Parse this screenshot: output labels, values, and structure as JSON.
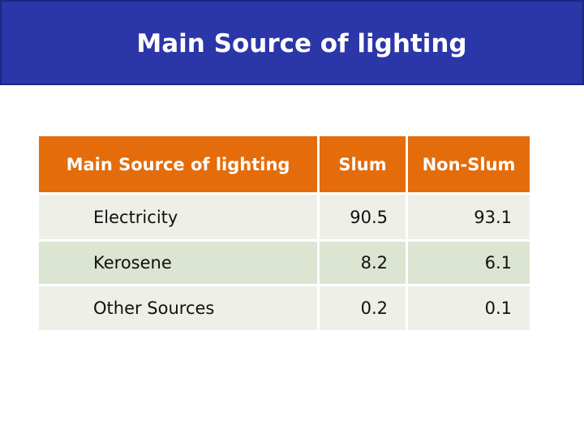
{
  "header": {
    "title": "Main Source of lighting"
  },
  "table": {
    "columns": [
      "Main Source of lighting",
      "Slum",
      "Non-Slum"
    ],
    "rows": [
      [
        "Electricity",
        90.5,
        93.1
      ],
      [
        "Kerosene",
        8.2,
        6.1
      ],
      [
        "Other Sources",
        0.2,
        0.1
      ]
    ]
  }
}
